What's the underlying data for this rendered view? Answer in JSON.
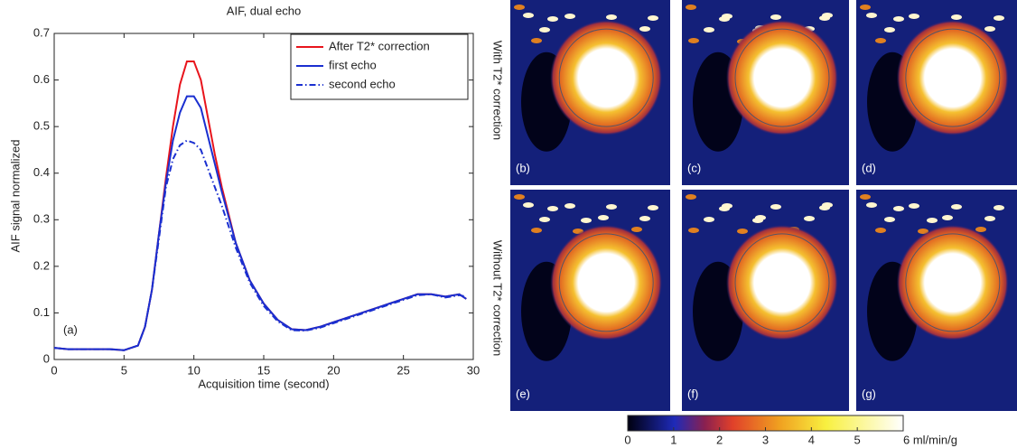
{
  "chart_data": {
    "type": "line",
    "title": "AIF, dual echo",
    "x_label": "Acquisition time (second)",
    "y_label": "AIF signal normalized",
    "annotation": "(a)",
    "x": [
      0,
      1,
      2,
      3,
      4,
      5,
      6,
      6.5,
      7,
      7.5,
      8,
      8.5,
      9,
      9.5,
      10,
      10.5,
      11,
      11.5,
      12,
      13,
      14,
      15,
      16,
      17,
      18,
      19,
      20,
      21,
      22,
      23,
      24,
      25,
      26,
      27,
      28,
      29,
      29.5
    ],
    "series": [
      {
        "name": "After T2* correction",
        "color": "#e8141c",
        "linestyle": "solid",
        "values": [
          0.025,
          0.022,
          0.022,
          0.022,
          0.022,
          0.02,
          0.03,
          0.07,
          0.15,
          0.27,
          0.39,
          0.5,
          0.59,
          0.64,
          0.64,
          0.6,
          0.52,
          0.44,
          0.37,
          0.25,
          0.17,
          0.12,
          0.085,
          0.065,
          0.063,
          0.07,
          0.08,
          0.09,
          0.1,
          0.11,
          0.12,
          0.13,
          0.14,
          0.14,
          0.135,
          0.14,
          0.13
        ]
      },
      {
        "name": "first echo",
        "color": "#1a2fd0",
        "linestyle": "solid",
        "values": [
          0.025,
          0.022,
          0.022,
          0.022,
          0.022,
          0.02,
          0.03,
          0.07,
          0.15,
          0.27,
          0.38,
          0.47,
          0.53,
          0.565,
          0.565,
          0.54,
          0.48,
          0.42,
          0.36,
          0.25,
          0.17,
          0.12,
          0.085,
          0.065,
          0.063,
          0.07,
          0.08,
          0.09,
          0.1,
          0.11,
          0.12,
          0.13,
          0.14,
          0.14,
          0.135,
          0.14,
          0.13
        ]
      },
      {
        "name": "second echo",
        "color": "#1a2fd0",
        "linestyle": "dashdot",
        "values": [
          0.025,
          0.022,
          0.022,
          0.022,
          0.022,
          0.02,
          0.03,
          0.07,
          0.15,
          0.26,
          0.37,
          0.43,
          0.46,
          0.47,
          0.465,
          0.45,
          0.41,
          0.37,
          0.33,
          0.24,
          0.165,
          0.115,
          0.082,
          0.063,
          0.062,
          0.068,
          0.078,
          0.088,
          0.098,
          0.108,
          0.118,
          0.128,
          0.138,
          0.14,
          0.133,
          0.138,
          0.135
        ]
      }
    ],
    "xlim": [
      0,
      30
    ],
    "ylim": [
      0,
      0.7
    ],
    "xticks": [
      0,
      5,
      10,
      15,
      20,
      25,
      30
    ],
    "yticks": [
      0,
      0.1,
      0.2,
      0.3,
      0.4,
      0.5,
      0.6,
      0.7
    ],
    "legend": "upper right"
  },
  "maps": {
    "row_labels": [
      "With T2* correction",
      "Without T2* correction"
    ],
    "panels": [
      "(b)",
      "(c)",
      "(d)",
      "(e)",
      "(f)",
      "(g)"
    ],
    "colorbar": {
      "lim": [
        0,
        6
      ],
      "ticks": [
        0,
        1,
        2,
        3,
        4,
        5,
        {
          "value": 6,
          "label": "6 ml/min/g"
        }
      ]
    }
  }
}
